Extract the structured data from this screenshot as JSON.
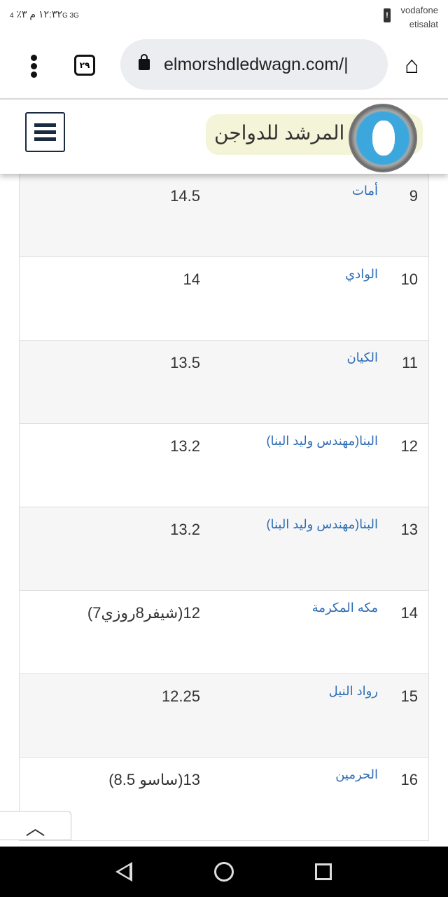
{
  "status_bar": {
    "time": "١٢:٣٢ م",
    "battery": "٣٪",
    "network": "4G 3G",
    "carrier_1": "vodafone",
    "carrier_2": "etisalat"
  },
  "browser": {
    "url": "elmorshdledwagn.com/|",
    "tab_count": "٢٩"
  },
  "site": {
    "logo_text": "المرشد للدواجن"
  },
  "table": {
    "rows": [
      {
        "num": "9",
        "name": "أمات",
        "value": "14.5"
      },
      {
        "num": "10",
        "name": "الوادي",
        "value": "14"
      },
      {
        "num": "11",
        "name": "الكيان",
        "value": "13.5"
      },
      {
        "num": "12",
        "name": "البنا(مهندس وليد البنا)",
        "value": "13.2"
      },
      {
        "num": "13",
        "name": "البنا(مهندس وليد البنا)",
        "value": "13.2"
      },
      {
        "num": "14",
        "name": "مكه المكرمة",
        "value": "12(شيفر8روزي7)"
      },
      {
        "num": "15",
        "name": "رواد النيل",
        "value": "12.25"
      },
      {
        "num": "16",
        "name": "الحرمين",
        "value": "13(ساسو 8.5)"
      }
    ]
  },
  "scroll_top": {
    "icon": "chevron-up-icon",
    "label": "^"
  }
}
